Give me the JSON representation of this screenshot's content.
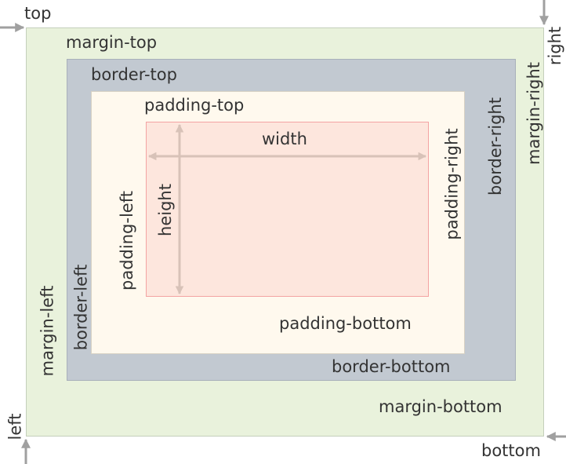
{
  "labels": {
    "top": "top",
    "right": "right",
    "bottom": "bottom",
    "left": "left",
    "margin_top": "margin-top",
    "margin_right": "margin-right",
    "margin_bottom": "margin-bottom",
    "margin_left": "margin-left",
    "border_top": "border-top",
    "border_right": "border-right",
    "border_bottom": "border-bottom",
    "border_left": "border-left",
    "padding_top": "padding-top",
    "padding_right": "padding-right",
    "padding_bottom": "padding-bottom",
    "padding_left": "padding-left",
    "width": "width",
    "height": "height"
  },
  "colors": {
    "margin": "#e9f2dc",
    "border": "#c2c9d1",
    "padding": "#fff9ee",
    "content": "#fde6dd",
    "content_outline": "#f3a3a3",
    "arrow_gray": "#a0a0a0",
    "dimension_arrow": "#d8c2b8"
  }
}
